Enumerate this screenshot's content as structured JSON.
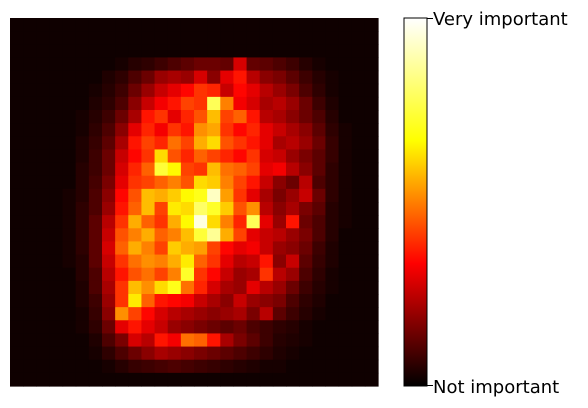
{
  "chart_data": {
    "type": "heatmap",
    "title": "",
    "xlabel": "",
    "ylabel": "",
    "axes_visible": false,
    "grid": false,
    "colormap": "hot",
    "colormap_stops": [
      "#000000",
      "#ff0000",
      "#ffff00",
      "#ffffff"
    ],
    "colorbar": {
      "placement": "right",
      "min_label": "Not important",
      "max_label": "Very important"
    },
    "rows": 28,
    "cols": 28,
    "values": [
      [
        0.02,
        0.02,
        0.02,
        0.02,
        0.02,
        0.02,
        0.02,
        0.02,
        0.02,
        0.02,
        0.02,
        0.02,
        0.02,
        0.02,
        0.02,
        0.02,
        0.02,
        0.02,
        0.02,
        0.02,
        0.02,
        0.02,
        0.02,
        0.02,
        0.02,
        0.02,
        0.02,
        0.02
      ],
      [
        0.02,
        0.02,
        0.02,
        0.02,
        0.02,
        0.02,
        0.02,
        0.02,
        0.02,
        0.02,
        0.02,
        0.02,
        0.02,
        0.02,
        0.02,
        0.02,
        0.02,
        0.02,
        0.02,
        0.02,
        0.02,
        0.02,
        0.02,
        0.02,
        0.02,
        0.02,
        0.02,
        0.02
      ],
      [
        0.02,
        0.02,
        0.02,
        0.02,
        0.02,
        0.02,
        0.02,
        0.02,
        0.02,
        0.02,
        0.02,
        0.02,
        0.02,
        0.02,
        0.02,
        0.02,
        0.02,
        0.02,
        0.02,
        0.02,
        0.02,
        0.02,
        0.02,
        0.02,
        0.02,
        0.02,
        0.02,
        0.02
      ],
      [
        0.02,
        0.02,
        0.02,
        0.02,
        0.02,
        0.02,
        0.02,
        0.02,
        0.03,
        0.05,
        0.06,
        0.08,
        0.1,
        0.12,
        0.14,
        0.14,
        0.13,
        0.28,
        0.13,
        0.12,
        0.1,
        0.08,
        0.05,
        0.03,
        0.02,
        0.02,
        0.02,
        0.02
      ],
      [
        0.02,
        0.02,
        0.02,
        0.02,
        0.02,
        0.02,
        0.02,
        0.04,
        0.06,
        0.1,
        0.14,
        0.2,
        0.22,
        0.2,
        0.28,
        0.18,
        0.3,
        0.36,
        0.24,
        0.18,
        0.16,
        0.12,
        0.08,
        0.05,
        0.03,
        0.02,
        0.02,
        0.02
      ],
      [
        0.02,
        0.02,
        0.02,
        0.02,
        0.02,
        0.02,
        0.03,
        0.05,
        0.08,
        0.14,
        0.2,
        0.26,
        0.3,
        0.34,
        0.4,
        0.38,
        0.26,
        0.34,
        0.3,
        0.24,
        0.2,
        0.16,
        0.1,
        0.06,
        0.03,
        0.02,
        0.02,
        0.02
      ],
      [
        0.02,
        0.02,
        0.02,
        0.02,
        0.02,
        0.02,
        0.04,
        0.06,
        0.1,
        0.18,
        0.26,
        0.32,
        0.36,
        0.42,
        0.4,
        0.78,
        0.5,
        0.32,
        0.28,
        0.22,
        0.24,
        0.2,
        0.14,
        0.08,
        0.04,
        0.02,
        0.02,
        0.02
      ],
      [
        0.02,
        0.02,
        0.02,
        0.02,
        0.02,
        0.03,
        0.05,
        0.08,
        0.14,
        0.22,
        0.36,
        0.4,
        0.3,
        0.38,
        0.44,
        0.58,
        0.42,
        0.46,
        0.36,
        0.24,
        0.22,
        0.18,
        0.14,
        0.1,
        0.05,
        0.02,
        0.02,
        0.02
      ],
      [
        0.02,
        0.02,
        0.02,
        0.02,
        0.02,
        0.03,
        0.06,
        0.1,
        0.18,
        0.3,
        0.38,
        0.32,
        0.4,
        0.36,
        0.52,
        0.55,
        0.4,
        0.34,
        0.38,
        0.3,
        0.26,
        0.22,
        0.18,
        0.12,
        0.06,
        0.03,
        0.02,
        0.02
      ],
      [
        0.02,
        0.02,
        0.02,
        0.02,
        0.02,
        0.04,
        0.07,
        0.12,
        0.22,
        0.36,
        0.42,
        0.38,
        0.48,
        0.42,
        0.56,
        0.62,
        0.44,
        0.4,
        0.36,
        0.3,
        0.22,
        0.24,
        0.2,
        0.14,
        0.07,
        0.03,
        0.02,
        0.02
      ],
      [
        0.02,
        0.02,
        0.02,
        0.02,
        0.02,
        0.04,
        0.08,
        0.14,
        0.26,
        0.34,
        0.4,
        0.62,
        0.44,
        0.38,
        0.46,
        0.42,
        0.38,
        0.34,
        0.4,
        0.28,
        0.26,
        0.2,
        0.16,
        0.12,
        0.07,
        0.03,
        0.02,
        0.02
      ],
      [
        0.02,
        0.02,
        0.02,
        0.02,
        0.02,
        0.05,
        0.08,
        0.14,
        0.28,
        0.38,
        0.46,
        0.74,
        0.66,
        0.42,
        0.4,
        0.58,
        0.48,
        0.46,
        0.42,
        0.3,
        0.32,
        0.24,
        0.18,
        0.12,
        0.06,
        0.03,
        0.02,
        0.02
      ],
      [
        0.02,
        0.02,
        0.02,
        0.02,
        0.02,
        0.05,
        0.09,
        0.16,
        0.3,
        0.4,
        0.42,
        0.46,
        0.5,
        0.44,
        0.62,
        0.6,
        0.5,
        0.42,
        0.36,
        0.26,
        0.18,
        0.14,
        0.24,
        0.1,
        0.06,
        0.03,
        0.02,
        0.02
      ],
      [
        0.02,
        0.02,
        0.02,
        0.02,
        0.03,
        0.05,
        0.1,
        0.18,
        0.34,
        0.44,
        0.58,
        0.56,
        0.6,
        0.66,
        0.7,
        0.92,
        0.54,
        0.4,
        0.3,
        0.22,
        0.16,
        0.2,
        0.26,
        0.14,
        0.06,
        0.03,
        0.02,
        0.02
      ],
      [
        0.02,
        0.02,
        0.02,
        0.02,
        0.03,
        0.06,
        0.1,
        0.2,
        0.36,
        0.46,
        0.58,
        0.42,
        0.64,
        0.62,
        0.8,
        0.72,
        0.6,
        0.44,
        0.52,
        0.24,
        0.18,
        0.22,
        0.16,
        0.12,
        0.05,
        0.03,
        0.02,
        0.02
      ],
      [
        0.02,
        0.02,
        0.02,
        0.02,
        0.03,
        0.06,
        0.12,
        0.24,
        0.4,
        0.56,
        0.46,
        0.4,
        0.56,
        0.66,
        0.96,
        0.62,
        0.5,
        0.38,
        0.78,
        0.3,
        0.2,
        0.36,
        0.14,
        0.1,
        0.05,
        0.03,
        0.02,
        0.02
      ],
      [
        0.02,
        0.02,
        0.02,
        0.02,
        0.03,
        0.06,
        0.12,
        0.26,
        0.44,
        0.5,
        0.56,
        0.46,
        0.5,
        0.58,
        0.74,
        0.86,
        0.56,
        0.42,
        0.3,
        0.26,
        0.24,
        0.2,
        0.16,
        0.1,
        0.05,
        0.02,
        0.02,
        0.02
      ],
      [
        0.02,
        0.02,
        0.02,
        0.02,
        0.03,
        0.06,
        0.12,
        0.28,
        0.46,
        0.56,
        0.5,
        0.42,
        0.6,
        0.56,
        0.54,
        0.42,
        0.34,
        0.3,
        0.32,
        0.26,
        0.2,
        0.18,
        0.14,
        0.08,
        0.04,
        0.02,
        0.02,
        0.02
      ],
      [
        0.02,
        0.02,
        0.02,
        0.02,
        0.03,
        0.05,
        0.12,
        0.26,
        0.4,
        0.48,
        0.52,
        0.5,
        0.56,
        0.64,
        0.46,
        0.4,
        0.3,
        0.24,
        0.26,
        0.36,
        0.18,
        0.26,
        0.12,
        0.07,
        0.04,
        0.02,
        0.02,
        0.02
      ],
      [
        0.02,
        0.02,
        0.02,
        0.02,
        0.02,
        0.05,
        0.1,
        0.24,
        0.36,
        0.44,
        0.48,
        0.42,
        0.5,
        0.72,
        0.4,
        0.34,
        0.26,
        0.2,
        0.22,
        0.4,
        0.24,
        0.2,
        0.1,
        0.06,
        0.03,
        0.02,
        0.02,
        0.02
      ],
      [
        0.02,
        0.02,
        0.02,
        0.02,
        0.02,
        0.04,
        0.1,
        0.22,
        0.4,
        0.58,
        0.52,
        0.62,
        0.7,
        0.48,
        0.38,
        0.28,
        0.22,
        0.2,
        0.3,
        0.24,
        0.2,
        0.14,
        0.08,
        0.05,
        0.03,
        0.02,
        0.02,
        0.02
      ],
      [
        0.02,
        0.02,
        0.02,
        0.02,
        0.02,
        0.04,
        0.08,
        0.2,
        0.4,
        0.64,
        0.46,
        0.36,
        0.34,
        0.32,
        0.26,
        0.22,
        0.18,
        0.26,
        0.2,
        0.18,
        0.16,
        0.1,
        0.06,
        0.04,
        0.02,
        0.02,
        0.02,
        0.02
      ],
      [
        0.02,
        0.02,
        0.02,
        0.02,
        0.02,
        0.03,
        0.07,
        0.18,
        0.52,
        0.42,
        0.34,
        0.28,
        0.24,
        0.22,
        0.2,
        0.18,
        0.2,
        0.22,
        0.16,
        0.24,
        0.12,
        0.08,
        0.05,
        0.03,
        0.02,
        0.02,
        0.02,
        0.02
      ],
      [
        0.02,
        0.02,
        0.02,
        0.02,
        0.02,
        0.03,
        0.06,
        0.14,
        0.3,
        0.36,
        0.3,
        0.26,
        0.2,
        0.18,
        0.16,
        0.14,
        0.12,
        0.14,
        0.1,
        0.08,
        0.06,
        0.05,
        0.03,
        0.02,
        0.02,
        0.02,
        0.02,
        0.02
      ],
      [
        0.02,
        0.02,
        0.02,
        0.02,
        0.02,
        0.02,
        0.04,
        0.1,
        0.16,
        0.28,
        0.24,
        0.36,
        0.32,
        0.48,
        0.46,
        0.36,
        0.22,
        0.16,
        0.12,
        0.08,
        0.05,
        0.04,
        0.03,
        0.02,
        0.02,
        0.02,
        0.02,
        0.02
      ],
      [
        0.02,
        0.02,
        0.02,
        0.02,
        0.02,
        0.02,
        0.03,
        0.06,
        0.1,
        0.14,
        0.18,
        0.22,
        0.2,
        0.18,
        0.16,
        0.14,
        0.12,
        0.1,
        0.08,
        0.06,
        0.04,
        0.03,
        0.02,
        0.02,
        0.02,
        0.02,
        0.02,
        0.02
      ],
      [
        0.02,
        0.02,
        0.02,
        0.02,
        0.02,
        0.02,
        0.02,
        0.03,
        0.05,
        0.07,
        0.08,
        0.09,
        0.1,
        0.09,
        0.08,
        0.07,
        0.06,
        0.05,
        0.04,
        0.03,
        0.03,
        0.02,
        0.02,
        0.02,
        0.02,
        0.02,
        0.02,
        0.02
      ],
      [
        0.02,
        0.02,
        0.02,
        0.02,
        0.02,
        0.02,
        0.02,
        0.02,
        0.02,
        0.02,
        0.02,
        0.02,
        0.02,
        0.02,
        0.02,
        0.02,
        0.02,
        0.02,
        0.02,
        0.02,
        0.02,
        0.02,
        0.02,
        0.02,
        0.02,
        0.02,
        0.02,
        0.02
      ]
    ]
  }
}
